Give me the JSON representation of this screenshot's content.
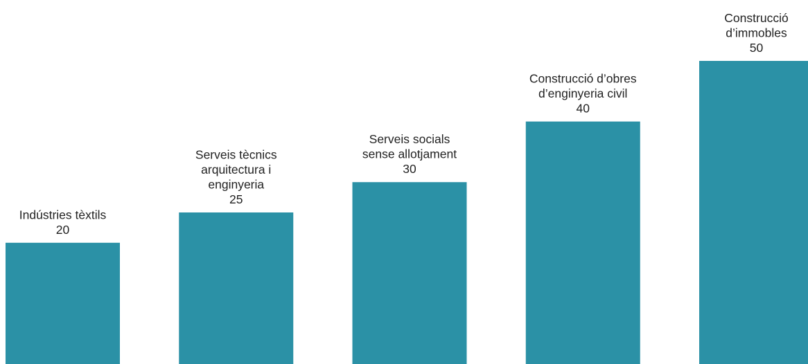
{
  "chart_data": {
    "type": "bar",
    "categories": [
      [
        "Indústries tèxtils"
      ],
      [
        "Serveis tècnics",
        "arquitectura i",
        "enginyeria"
      ],
      [
        "Serveis socials",
        "sense allotjament"
      ],
      [
        "Construcció d’obres",
        "d’enginyeria civil"
      ],
      [
        "Construcció",
        "d’immobles"
      ]
    ],
    "values": [
      20,
      25,
      30,
      40,
      50
    ],
    "ylim": [
      0,
      50
    ],
    "grid": false,
    "legend": "none",
    "bar_color": "#2b91a6",
    "text_color": "#222222"
  }
}
